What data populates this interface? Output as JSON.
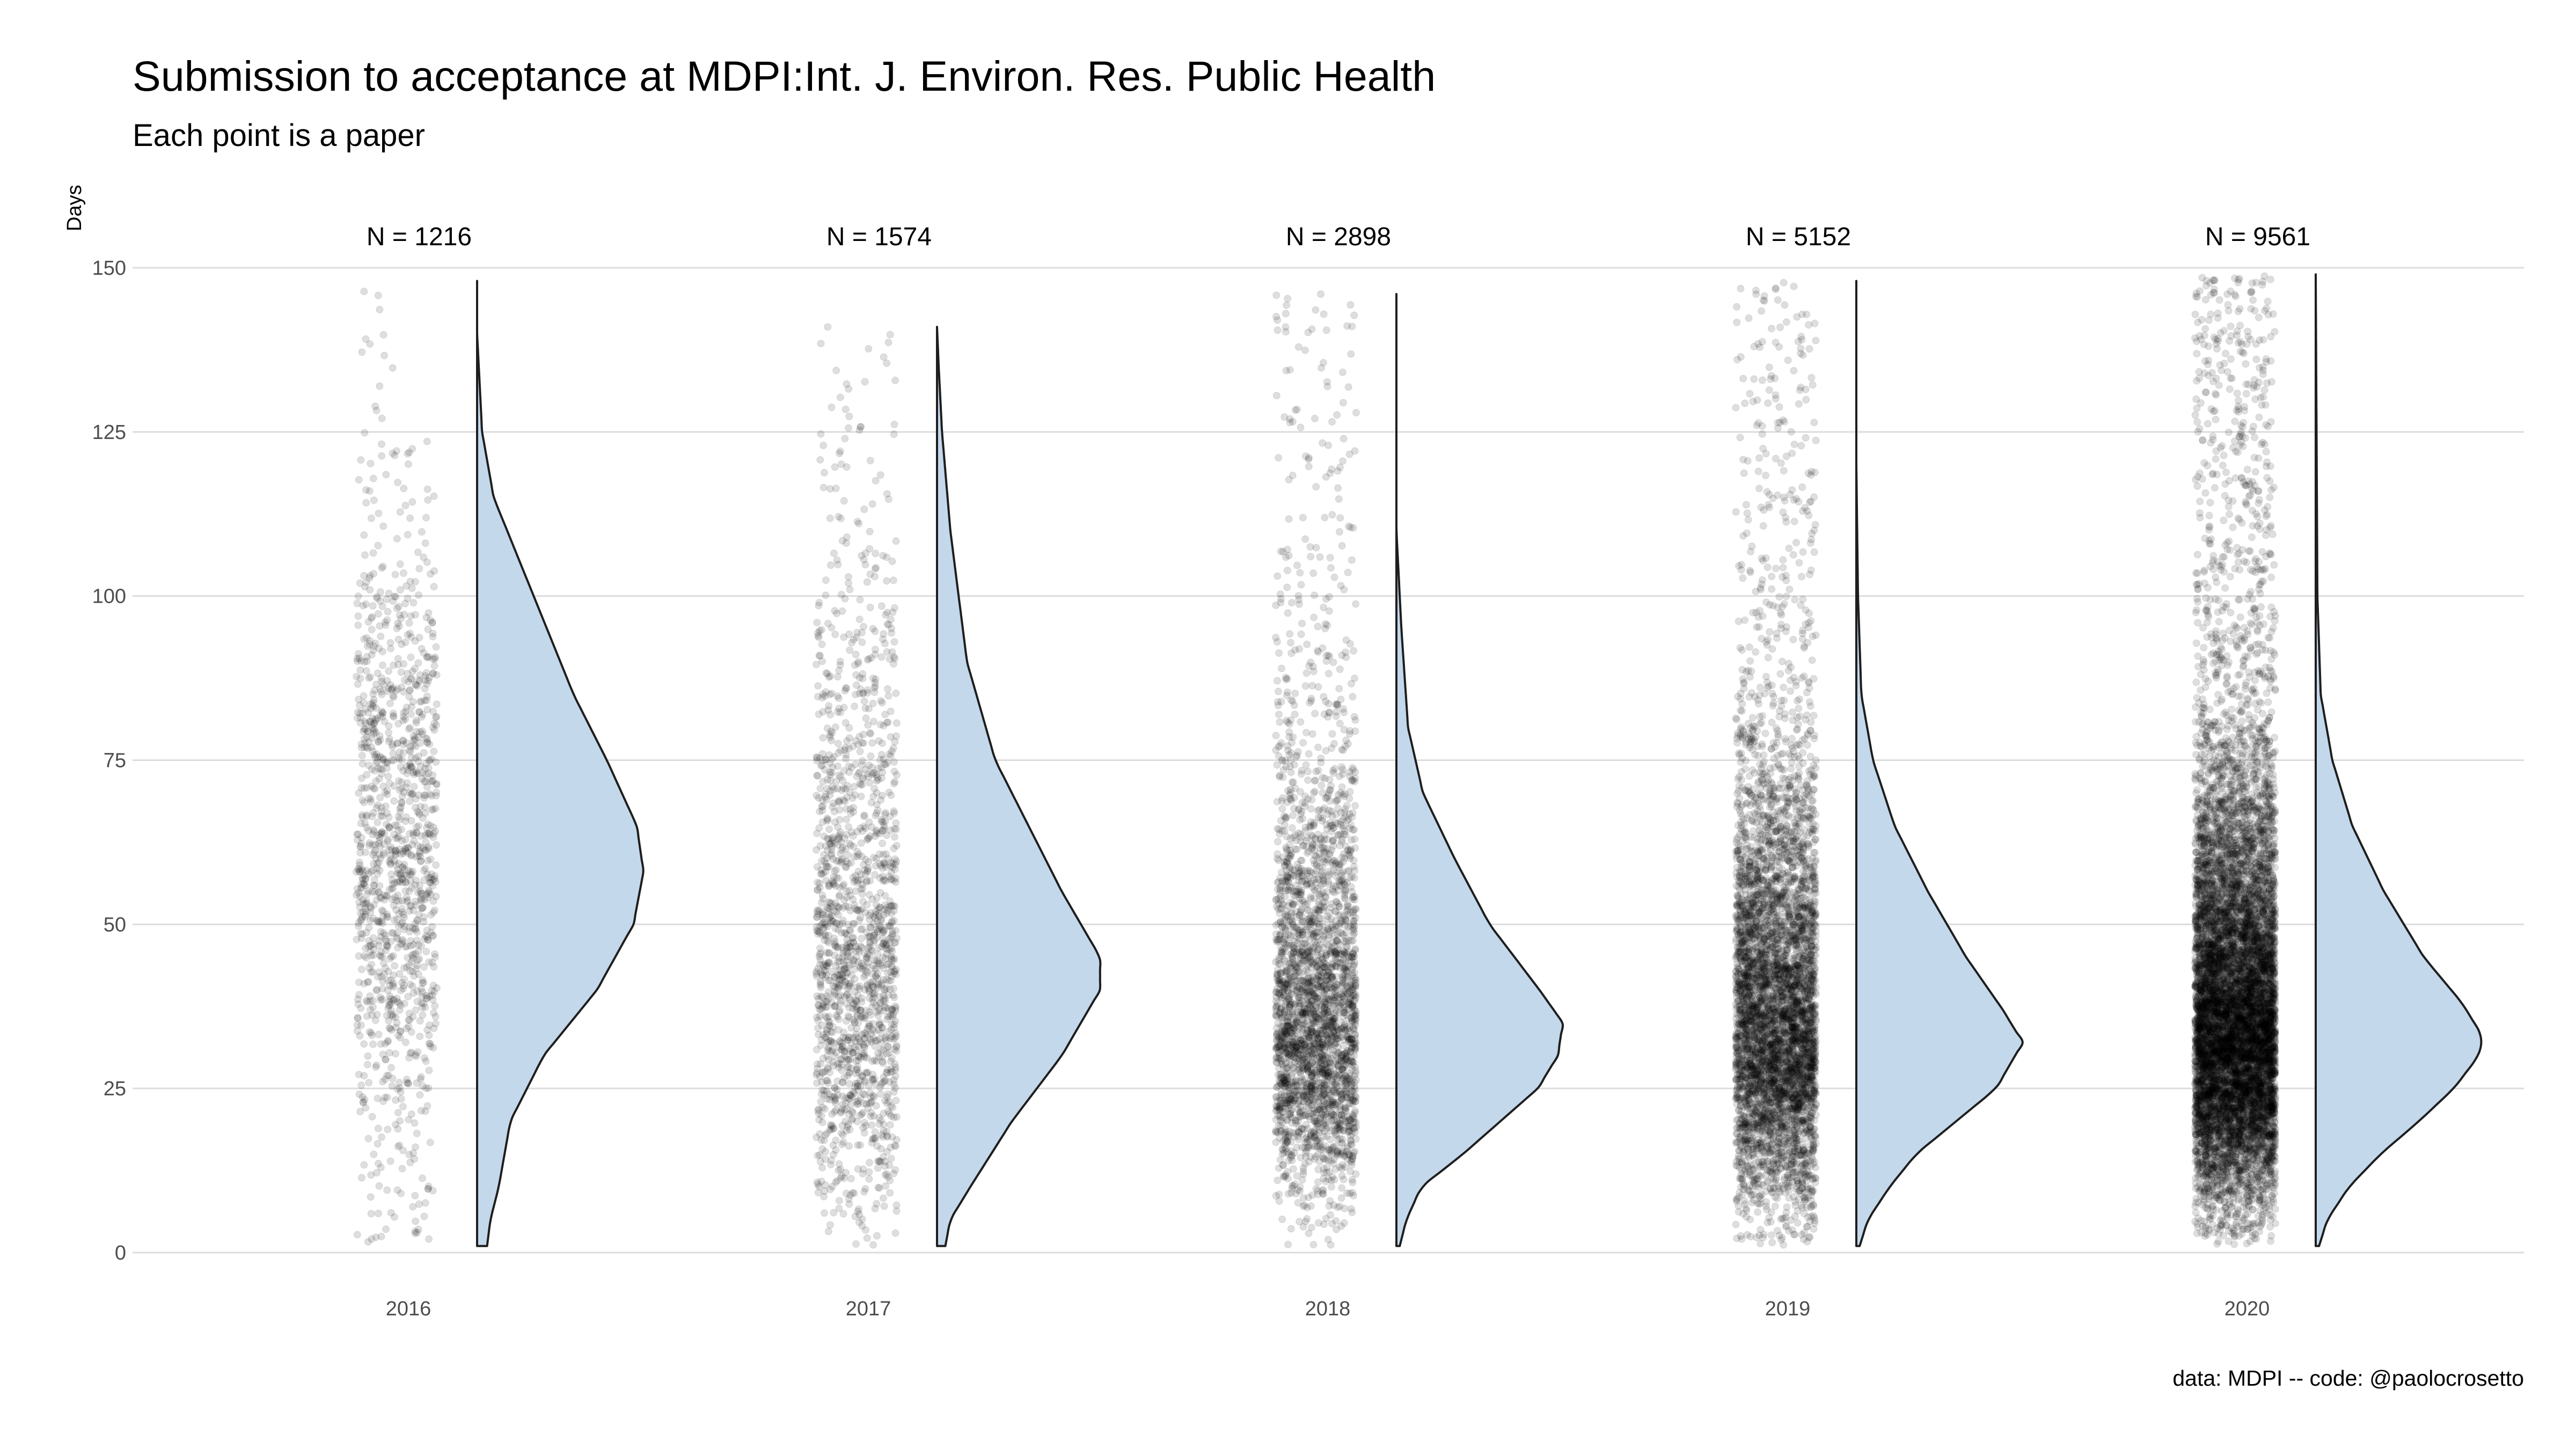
{
  "title": "Submission to acceptance at MDPI:Int. J. Environ. Res. Public Health",
  "subtitle": "Each point is a paper",
  "caption": "data: MDPI -- code: @paolocrosetto",
  "chart_data": {
    "type": "raincloud",
    "title": "Submission to acceptance at MDPI:Int. J. Environ. Res. Public Health",
    "subtitle": "Each point is a paper",
    "xlabel": "",
    "ylabel": "Days",
    "ylim": [
      0,
      150
    ],
    "yticks": [
      0,
      25,
      50,
      75,
      100,
      125,
      150
    ],
    "grid": true,
    "categories": [
      "2016",
      "2017",
      "2018",
      "2019",
      "2020"
    ],
    "n_labels": [
      "N = 1216",
      "N = 1574",
      "N = 2898",
      "N = 5152",
      "N = 9561"
    ],
    "n": [
      1216,
      1574,
      2898,
      5152,
      9561
    ],
    "modes": [
      58,
      41,
      35,
      32,
      32
    ],
    "max_days": [
      148,
      141,
      146,
      148,
      149
    ],
    "point_color": "#000000",
    "density_fill": "#c4d8ec",
    "density_stroke": "#1e1e1e",
    "density_profiles": [
      [
        [
          1,
          0.06
        ],
        [
          5,
          0.08
        ],
        [
          10,
          0.13
        ],
        [
          20,
          0.2
        ],
        [
          30,
          0.4
        ],
        [
          40,
          0.72
        ],
        [
          50,
          0.94
        ],
        [
          58,
          1.0
        ],
        [
          65,
          0.96
        ],
        [
          75,
          0.78
        ],
        [
          85,
          0.58
        ],
        [
          100,
          0.34
        ],
        [
          115,
          0.1
        ],
        [
          125,
          0.03
        ],
        [
          140,
          0.0
        ],
        [
          148,
          0.0
        ]
      ],
      [
        [
          1,
          0.05
        ],
        [
          5,
          0.08
        ],
        [
          10,
          0.2
        ],
        [
          20,
          0.45
        ],
        [
          30,
          0.75
        ],
        [
          40,
          0.98
        ],
        [
          45,
          0.98
        ],
        [
          55,
          0.75
        ],
        [
          65,
          0.55
        ],
        [
          75,
          0.35
        ],
        [
          90,
          0.18
        ],
        [
          110,
          0.08
        ],
        [
          125,
          0.03
        ],
        [
          135,
          0.01
        ],
        [
          141,
          0.0
        ]
      ],
      [
        [
          1,
          0.02
        ],
        [
          5,
          0.06
        ],
        [
          10,
          0.15
        ],
        [
          15,
          0.4
        ],
        [
          25,
          0.85
        ],
        [
          30,
          0.97
        ],
        [
          35,
          1.0
        ],
        [
          40,
          0.86
        ],
        [
          50,
          0.56
        ],
        [
          60,
          0.35
        ],
        [
          70,
          0.16
        ],
        [
          80,
          0.07
        ],
        [
          95,
          0.03
        ],
        [
          110,
          0.0
        ],
        [
          146,
          0.0
        ]
      ],
      [
        [
          1,
          0.02
        ],
        [
          5,
          0.07
        ],
        [
          10,
          0.2
        ],
        [
          15,
          0.36
        ],
        [
          20,
          0.6
        ],
        [
          25,
          0.84
        ],
        [
          32,
          1.0
        ],
        [
          37,
          0.88
        ],
        [
          45,
          0.66
        ],
        [
          55,
          0.43
        ],
        [
          65,
          0.23
        ],
        [
          75,
          0.1
        ],
        [
          85,
          0.03
        ],
        [
          100,
          0.01
        ],
        [
          120,
          0.0
        ],
        [
          148,
          0.0
        ]
      ],
      [
        [
          1,
          0.02
        ],
        [
          5,
          0.07
        ],
        [
          10,
          0.2
        ],
        [
          15,
          0.39
        ],
        [
          20,
          0.62
        ],
        [
          25,
          0.83
        ],
        [
          30,
          0.98
        ],
        [
          33,
          1.0
        ],
        [
          38,
          0.88
        ],
        [
          45,
          0.65
        ],
        [
          55,
          0.41
        ],
        [
          65,
          0.22
        ],
        [
          75,
          0.1
        ],
        [
          85,
          0.03
        ],
        [
          100,
          0.01
        ],
        [
          149,
          0.0
        ]
      ]
    ]
  }
}
